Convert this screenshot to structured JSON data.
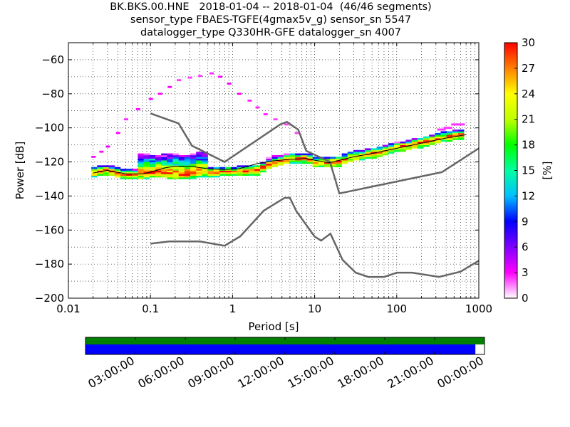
{
  "title_lines": [
    "BK.BKS.00.HNE   2018-01-04 -- 2018-01-04  (46/46 segments)",
    "sensor_type FBAES-TGFE(4gmax5v_g) sensor_sn 5547",
    "datalogger_type Q330HR-GFE datalogger_sn 4007"
  ],
  "chart_data": [
    {
      "type": "heatmap",
      "title": "BK.BKS.00.HNE   2018-01-04 -- 2018-01-04  (46/46 segments)",
      "xlabel": "Period [s]",
      "ylabel": "Power [dB]",
      "xscale": "log",
      "xlim": [
        0.01,
        1000
      ],
      "ylim": [
        -200,
        -50
      ],
      "x_ticks": [
        "0.01",
        "0.1",
        "1",
        "10",
        "100",
        "1000"
      ],
      "y_ticks": [
        "−60",
        "−80",
        "−100",
        "−120",
        "−140",
        "−160",
        "−180",
        "−200"
      ],
      "y_tick_values": [
        -60,
        -80,
        -100,
        -120,
        -140,
        -160,
        -180,
        -200
      ],
      "grid": "dotted",
      "colorbar": {
        "label": "[%]",
        "range": [
          0,
          30
        ],
        "ticks": [
          "30",
          "27",
          "24",
          "21",
          "18",
          "15",
          "12",
          "9",
          "6",
          "3",
          "0"
        ],
        "tick_values": [
          30,
          27,
          24,
          21,
          18,
          15,
          12,
          9,
          6,
          3,
          0
        ],
        "colors": [
          "#ffffff",
          "#ff00ff",
          "#8000ff",
          "#0000ff",
          "#00c0ff",
          "#00ffa0",
          "#00ff00",
          "#c0ff00",
          "#ffff00",
          "#ff8000",
          "#ff0000"
        ]
      },
      "noise_model_color": "#666666",
      "new_high_noise_model": {
        "x": [
          0.1,
          0.22,
          0.32,
          0.8,
          3.8,
          4.6,
          6.3,
          7.9,
          15.4,
          20,
          354.8,
          1000
        ],
        "y": [
          -91.5,
          -97.4,
          -110.5,
          -120,
          -98,
          -96.5,
          -101,
          -113.5,
          -120,
          -138.5,
          -126,
          -112
        ]
      },
      "new_low_noise_model": {
        "x": [
          0.1,
          0.17,
          0.4,
          0.8,
          1.24,
          2.4,
          4.3,
          5,
          6,
          10,
          12,
          15.6,
          21.9,
          31.6,
          45,
          70,
          101,
          154,
          328,
          600,
          1000
        ],
        "y": [
          -168,
          -166.7,
          -166.7,
          -169.2,
          -163.7,
          -148.6,
          -141.1,
          -141.1,
          -149,
          -163.8,
          -166.2,
          -162.1,
          -177.5,
          -185,
          -187.5,
          -187.5,
          -185,
          -185,
          -187.5,
          -184.4,
          -178
        ]
      },
      "mean_curve": {
        "x": [
          0.02,
          0.03,
          0.05,
          0.08,
          0.1,
          0.15,
          0.2,
          0.3,
          0.5,
          0.8,
          1.2,
          2,
          3,
          5,
          8,
          10,
          15,
          20,
          30,
          50,
          100,
          200,
          400,
          700
        ],
        "y": [
          -126.5,
          -125,
          -127,
          -127,
          -126,
          -123.5,
          -122.5,
          -122.5,
          -124,
          -124.5,
          -124,
          -121,
          -119.5,
          -118.5,
          -118,
          -119,
          -120.5,
          -119,
          -117,
          -115,
          -112,
          -109,
          -106,
          -104
        ]
      },
      "mode_curve": {
        "x": [
          0.02,
          0.03,
          0.04,
          0.06,
          0.1,
          0.15,
          0.25,
          0.4,
          0.7,
          1.2,
          2,
          3,
          5,
          8,
          10,
          15,
          20,
          30,
          50,
          100,
          200,
          400,
          700
        ],
        "y": [
          -126.5,
          -125,
          -127,
          -128,
          -127,
          -127,
          -128,
          -126.5,
          -126,
          -126,
          -125,
          -121,
          -118.5,
          -118,
          -120.5,
          -120.5,
          -120,
          -117,
          -115.5,
          -112,
          -109,
          -105.5,
          -104
        ]
      },
      "outlier_band": {
        "x": [
          0.02,
          0.025,
          0.03,
          0.04,
          0.05,
          0.07,
          0.1,
          0.13,
          0.17,
          0.22,
          0.3,
          0.4,
          0.55,
          0.7,
          0.9,
          1.2,
          1.6,
          2,
          2.5,
          3.3,
          4.5,
          6
        ],
        "y": [
          -117,
          -114,
          -111,
          -103,
          -95,
          -89,
          -83,
          -80,
          -76,
          -72,
          -70.5,
          -69.5,
          -68,
          -70,
          -74,
          -80,
          -84,
          -88,
          -92,
          -95,
          -98,
          -103
        ]
      }
    },
    {
      "type": "timeline",
      "x_ticks": [
        "03:00:00",
        "06:00:00",
        "09:00:00",
        "12:00:00",
        "15:00:00",
        "18:00:00",
        "21:00:00",
        "00:00:00"
      ],
      "x_tick_hours": [
        3,
        6,
        9,
        12,
        15,
        18,
        21,
        24
      ],
      "xlim_hours": [
        0,
        24
      ],
      "rows": [
        {
          "color": "#008000",
          "start_hour": 0,
          "end_hour": 24
        },
        {
          "color": "#0000ff",
          "start_hour": 0,
          "end_hour": 23.45
        }
      ]
    }
  ]
}
